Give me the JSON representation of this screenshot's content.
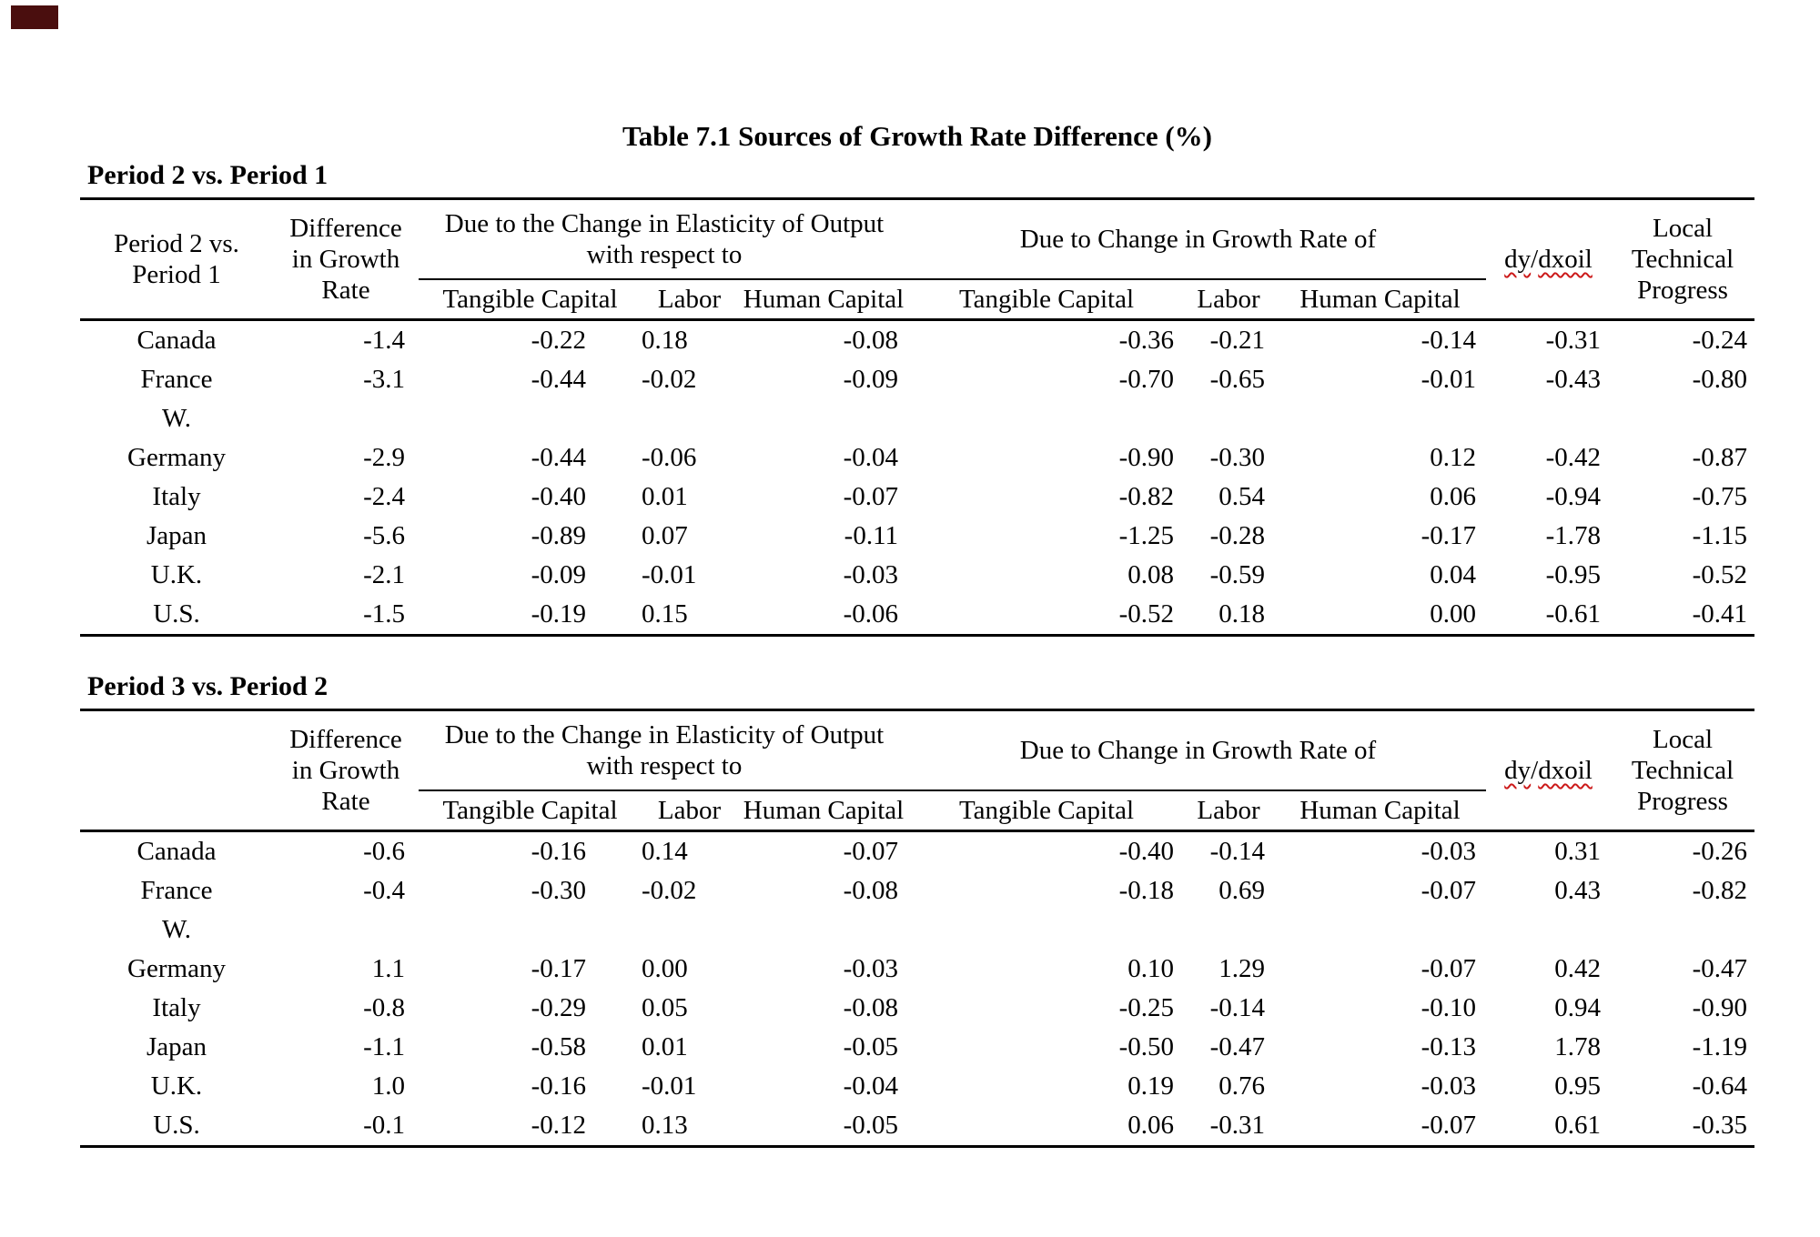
{
  "title": "Table 7.1 Sources of Growth Rate Difference (%)",
  "colors": {
    "rule": "#000000",
    "spellcheck_underline": "#cc1a1a",
    "corner_marker": "#4a0e0e"
  },
  "header_template": {
    "diff": "Difference\nin Growth\nRate",
    "group1": "Due to the Change in Elasticity of Output\nwith respect to",
    "group2": "Due to Change in Growth Rate of",
    "dy_parts": [
      "dy",
      "/",
      "dxoil"
    ],
    "local": "Local\nTechnical\nProgress",
    "subheaders": [
      "Tangible Capital",
      "Labor",
      "Human Capital",
      "Tangible Capital",
      "Labor",
      "Human Capital"
    ]
  },
  "panels": [
    {
      "label": "Period 2 vs. Period 1",
      "stub_header": "Period 2 vs.\nPeriod 1",
      "rows": [
        {
          "country": "Canada",
          "values": [
            "-1.4",
            "-0.22",
            "0.18",
            "-0.08",
            "-0.36",
            "-0.21",
            "-0.14",
            "-0.31",
            "-0.24"
          ]
        },
        {
          "country": "France",
          "values": [
            "-3.1",
            "-0.44",
            "-0.02",
            "-0.09",
            "-0.70",
            "-0.65",
            "-0.01",
            "-0.43",
            "-0.80"
          ]
        },
        {
          "country": "W.",
          "values": [
            "",
            "",
            "",
            "",
            "",
            "",
            "",
            "",
            ""
          ]
        },
        {
          "country": "Germany",
          "values": [
            "-2.9",
            "-0.44",
            "-0.06",
            "-0.04",
            "-0.90",
            "-0.30",
            "0.12",
            "-0.42",
            "-0.87"
          ]
        },
        {
          "country": "Italy",
          "values": [
            "-2.4",
            "-0.40",
            "0.01",
            "-0.07",
            "-0.82",
            "0.54",
            "0.06",
            "-0.94",
            "-0.75"
          ]
        },
        {
          "country": "Japan",
          "values": [
            "-5.6",
            "-0.89",
            "0.07",
            "-0.11",
            "-1.25",
            "-0.28",
            "-0.17",
            "-1.78",
            "-1.15"
          ]
        },
        {
          "country": "U.K.",
          "values": [
            "-2.1",
            "-0.09",
            "-0.01",
            "-0.03",
            "0.08",
            "-0.59",
            "0.04",
            "-0.95",
            "-0.52"
          ]
        },
        {
          "country": "U.S.",
          "values": [
            "-1.5",
            "-0.19",
            "0.15",
            "-0.06",
            "-0.52",
            "0.18",
            "0.00",
            "-0.61",
            "-0.41"
          ]
        }
      ]
    },
    {
      "label": "Period 3 vs. Period 2",
      "stub_header": "",
      "rows": [
        {
          "country": "Canada",
          "values": [
            "-0.6",
            "-0.16",
            "0.14",
            "-0.07",
            "-0.40",
            "-0.14",
            "-0.03",
            "0.31",
            "-0.26"
          ]
        },
        {
          "country": "France",
          "values": [
            "-0.4",
            "-0.30",
            "-0.02",
            "-0.08",
            "-0.18",
            "0.69",
            "-0.07",
            "0.43",
            "-0.82"
          ]
        },
        {
          "country": "W.",
          "values": [
            "",
            "",
            "",
            "",
            "",
            "",
            "",
            "",
            ""
          ]
        },
        {
          "country": "Germany",
          "values": [
            "1.1",
            "-0.17",
            "0.00",
            "-0.03",
            "0.10",
            "1.29",
            "-0.07",
            "0.42",
            "-0.47"
          ]
        },
        {
          "country": "Italy",
          "values": [
            "-0.8",
            "-0.29",
            "0.05",
            "-0.08",
            "-0.25",
            "-0.14",
            "-0.10",
            "0.94",
            "-0.90"
          ]
        },
        {
          "country": "Japan",
          "values": [
            "-1.1",
            "-0.58",
            "0.01",
            "-0.05",
            "-0.50",
            "-0.47",
            "-0.13",
            "1.78",
            "-1.19"
          ]
        },
        {
          "country": "U.K.",
          "values": [
            "1.0",
            "-0.16",
            "-0.01",
            "-0.04",
            "0.19",
            "0.76",
            "-0.03",
            "0.95",
            "-0.64"
          ]
        },
        {
          "country": "U.S.",
          "values": [
            "-0.1",
            "-0.12",
            "0.13",
            "-0.05",
            "0.06",
            "-0.31",
            "-0.07",
            "0.61",
            "-0.35"
          ]
        }
      ]
    }
  ]
}
